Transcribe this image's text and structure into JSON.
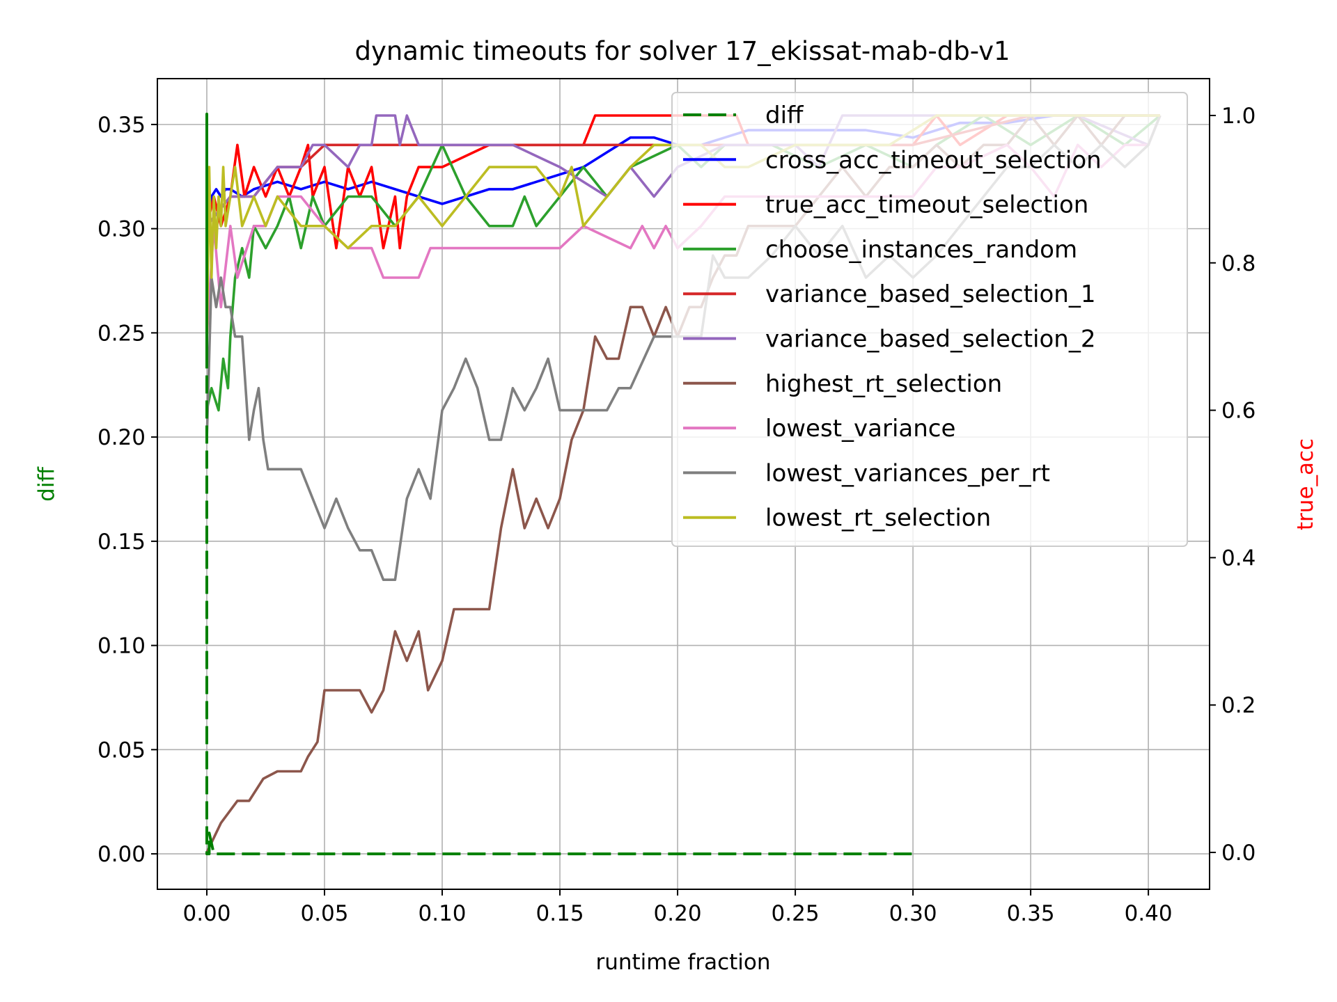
{
  "chart_data": {
    "type": "line",
    "title": "dynamic timeouts for solver 17_ekissat-mab-db-v1",
    "xlabel": "runtime fraction",
    "ylabel_left": "diff",
    "ylabel_right": "true_acc",
    "xlim": [
      -0.021,
      0.426
    ],
    "ylim_left": [
      -0.017,
      0.372
    ],
    "ylim_right": [
      -0.05,
      1.05
    ],
    "x_ticks": [
      0.0,
      0.05,
      0.1,
      0.15,
      0.2,
      0.25,
      0.3,
      0.35,
      0.4
    ],
    "x_tick_labels": [
      "0.00",
      "0.05",
      "0.10",
      "0.15",
      "0.20",
      "0.25",
      "0.30",
      "0.35",
      "0.40"
    ],
    "y_left_ticks": [
      0.0,
      0.05,
      0.1,
      0.15,
      0.2,
      0.25,
      0.3,
      0.35
    ],
    "y_left_tick_labels": [
      "0.00",
      "0.05",
      "0.10",
      "0.15",
      "0.20",
      "0.25",
      "0.30",
      "0.35"
    ],
    "y_right_ticks": [
      0.0,
      0.2,
      0.4,
      0.6,
      0.8,
      1.0
    ],
    "y_right_tick_labels": [
      "0.0",
      "0.2",
      "0.4",
      "0.6",
      "0.8",
      "1.0"
    ],
    "grid": true,
    "legend_placement": "upper-right",
    "colors": {
      "axis_left_label": "#008000",
      "axis_right_label": "#ff0000"
    },
    "series": [
      {
        "name": "diff",
        "axis": "left",
        "color": "#008000",
        "style": "dashed",
        "x": [
          0.0,
          0.0,
          0.0,
          0.001,
          0.001,
          0.003,
          0.01,
          0.05,
          0.1,
          0.15,
          0.2,
          0.203,
          0.226,
          0.235,
          0.292,
          0.3
        ],
        "y": [
          0.24,
          0.355,
          0.0,
          0.0,
          0.01,
          0.0,
          0.0,
          0.0,
          0.0,
          0.0,
          0.0,
          0.0,
          0.0,
          0.0,
          0.0,
          0.0
        ]
      },
      {
        "name": "cross_acc_timeout_selection",
        "axis": "right",
        "color": "#0000ff",
        "style": "solid",
        "x": [
          0.0,
          0.002,
          0.004,
          0.006,
          0.008,
          0.01,
          0.015,
          0.02,
          0.03,
          0.04,
          0.05,
          0.06,
          0.07,
          0.08,
          0.09,
          0.1,
          0.11,
          0.12,
          0.13,
          0.14,
          0.15,
          0.16,
          0.165,
          0.17,
          0.175,
          0.18,
          0.19,
          0.2,
          0.21,
          0.22,
          0.23,
          0.24,
          0.25,
          0.26,
          0.28,
          0.3,
          0.32,
          0.34,
          0.36,
          0.38,
          0.405
        ],
        "y": [
          0.85,
          0.89,
          0.9,
          0.89,
          0.9,
          0.9,
          0.89,
          0.9,
          0.91,
          0.9,
          0.91,
          0.9,
          0.91,
          0.9,
          0.89,
          0.88,
          0.89,
          0.9,
          0.9,
          0.91,
          0.92,
          0.93,
          0.94,
          0.95,
          0.96,
          0.97,
          0.97,
          0.96,
          0.96,
          0.97,
          0.98,
          0.98,
          0.98,
          0.98,
          0.98,
          0.97,
          0.99,
          0.99,
          1.0,
          1.0,
          1.0
        ]
      },
      {
        "name": "true_acc_timeout_selection",
        "axis": "right",
        "color": "#ff0000",
        "style": "solid",
        "x": [
          0.0,
          0.003,
          0.006,
          0.01,
          0.013,
          0.016,
          0.02,
          0.025,
          0.03,
          0.035,
          0.04,
          0.043,
          0.045,
          0.05,
          0.055,
          0.06,
          0.065,
          0.07,
          0.075,
          0.08,
          0.082,
          0.085,
          0.09,
          0.1,
          0.12,
          0.14,
          0.16,
          0.165,
          0.2,
          0.225,
          0.23,
          0.3,
          0.31,
          0.32,
          0.34,
          0.36,
          0.38,
          0.405
        ],
        "y": [
          0.85,
          0.89,
          0.85,
          0.89,
          0.96,
          0.89,
          0.93,
          0.89,
          0.93,
          0.89,
          0.93,
          0.96,
          0.89,
          0.93,
          0.82,
          0.93,
          0.89,
          0.93,
          0.82,
          0.89,
          0.82,
          0.89,
          0.93,
          0.93,
          0.96,
          0.96,
          0.96,
          1.0,
          1.0,
          1.0,
          0.96,
          0.96,
          1.0,
          0.96,
          1.0,
          1.0,
          1.0,
          1.0
        ]
      },
      {
        "name": "choose_instances_random",
        "axis": "right",
        "color": "#2ca02c",
        "style": "solid",
        "x": [
          0.0,
          0.002,
          0.005,
          0.007,
          0.009,
          0.01,
          0.012,
          0.015,
          0.018,
          0.02,
          0.025,
          0.03,
          0.035,
          0.04,
          0.045,
          0.05,
          0.06,
          0.07,
          0.08,
          0.09,
          0.1,
          0.11,
          0.12,
          0.13,
          0.135,
          0.14,
          0.15,
          0.16,
          0.17,
          0.18,
          0.2,
          0.21,
          0.22,
          0.24,
          0.26,
          0.28,
          0.3,
          0.31,
          0.33,
          0.35,
          0.37,
          0.39,
          0.405
        ],
        "y": [
          0.6,
          0.63,
          0.6,
          0.67,
          0.63,
          0.7,
          0.78,
          0.82,
          0.78,
          0.85,
          0.82,
          0.85,
          0.89,
          0.82,
          0.89,
          0.85,
          0.89,
          0.89,
          0.85,
          0.89,
          0.96,
          0.89,
          0.85,
          0.85,
          0.89,
          0.85,
          0.89,
          0.93,
          0.89,
          0.93,
          0.96,
          0.93,
          0.96,
          0.96,
          0.93,
          0.96,
          0.93,
          0.96,
          1.0,
          0.96,
          1.0,
          0.96,
          1.0
        ]
      },
      {
        "name": "variance_based_selection_1",
        "axis": "right",
        "color": "#d62728",
        "style": "solid",
        "x": [
          0.0,
          0.01,
          0.02,
          0.03,
          0.04,
          0.05,
          0.1,
          0.15,
          0.2,
          0.25,
          0.3,
          0.35,
          0.405
        ],
        "y": [
          0.85,
          0.89,
          0.89,
          0.93,
          0.93,
          0.96,
          0.96,
          0.96,
          0.96,
          0.96,
          0.96,
          1.0,
          1.0
        ]
      },
      {
        "name": "variance_based_selection_2",
        "axis": "right",
        "color": "#9467bd",
        "style": "solid",
        "x": [
          0.0,
          0.01,
          0.02,
          0.03,
          0.04,
          0.045,
          0.05,
          0.06,
          0.065,
          0.07,
          0.072,
          0.08,
          0.082,
          0.085,
          0.09,
          0.1,
          0.13,
          0.15,
          0.17,
          0.18,
          0.19,
          0.2,
          0.22,
          0.25,
          0.26,
          0.27,
          0.29,
          0.31,
          0.34,
          0.37,
          0.4,
          0.405
        ],
        "y": [
          0.85,
          0.89,
          0.89,
          0.93,
          0.93,
          0.96,
          0.96,
          0.93,
          0.96,
          0.96,
          1.0,
          1.0,
          0.96,
          1.0,
          0.96,
          0.96,
          0.96,
          0.93,
          0.89,
          0.93,
          0.89,
          0.93,
          0.96,
          0.96,
          0.93,
          1.0,
          1.0,
          1.0,
          1.0,
          1.0,
          0.96,
          1.0
        ]
      },
      {
        "name": "highest_rt_selection",
        "axis": "right",
        "color": "#8c564b",
        "style": "solid",
        "x": [
          0.0,
          0.006,
          0.013,
          0.018,
          0.024,
          0.03,
          0.036,
          0.04,
          0.043,
          0.047,
          0.05,
          0.06,
          0.065,
          0.07,
          0.075,
          0.08,
          0.085,
          0.09,
          0.094,
          0.1,
          0.105,
          0.11,
          0.12,
          0.125,
          0.13,
          0.135,
          0.14,
          0.145,
          0.15,
          0.155,
          0.16,
          0.165,
          0.17,
          0.175,
          0.18,
          0.185,
          0.19,
          0.195,
          0.2,
          0.205,
          0.21,
          0.215,
          0.22,
          0.225,
          0.23,
          0.24,
          0.25,
          0.26,
          0.27,
          0.28,
          0.29,
          0.3,
          0.31,
          0.32,
          0.33,
          0.34,
          0.35,
          0.36,
          0.37,
          0.38,
          0.39,
          0.405
        ],
        "y": [
          0.0,
          0.04,
          0.07,
          0.07,
          0.1,
          0.11,
          0.11,
          0.11,
          0.13,
          0.15,
          0.22,
          0.22,
          0.22,
          0.19,
          0.22,
          0.3,
          0.26,
          0.3,
          0.22,
          0.26,
          0.33,
          0.33,
          0.33,
          0.44,
          0.52,
          0.44,
          0.48,
          0.44,
          0.48,
          0.56,
          0.6,
          0.7,
          0.67,
          0.67,
          0.74,
          0.74,
          0.7,
          0.74,
          0.7,
          0.74,
          0.74,
          0.78,
          0.81,
          0.81,
          0.85,
          0.85,
          0.85,
          0.89,
          0.93,
          0.89,
          0.93,
          0.93,
          0.96,
          0.93,
          0.96,
          0.96,
          1.0,
          0.96,
          1.0,
          0.96,
          1.0,
          1.0
        ]
      },
      {
        "name": "lowest_variance",
        "axis": "right",
        "color": "#e377c2",
        "style": "solid",
        "x": [
          0.0,
          0.003,
          0.006,
          0.01,
          0.013,
          0.02,
          0.025,
          0.03,
          0.04,
          0.05,
          0.06,
          0.065,
          0.07,
          0.075,
          0.08,
          0.09,
          0.095,
          0.1,
          0.13,
          0.14,
          0.15,
          0.16,
          0.18,
          0.185,
          0.19,
          0.195,
          0.2,
          0.21,
          0.22,
          0.23,
          0.25,
          0.3,
          0.31,
          0.32,
          0.34,
          0.35,
          0.36,
          0.37,
          0.38,
          0.39,
          0.4,
          0.405
        ],
        "y": [
          0.7,
          0.85,
          0.74,
          0.85,
          0.78,
          0.85,
          0.85,
          0.89,
          0.89,
          0.85,
          0.82,
          0.82,
          0.82,
          0.78,
          0.78,
          0.78,
          0.82,
          0.82,
          0.82,
          0.82,
          0.82,
          0.85,
          0.82,
          0.85,
          0.82,
          0.85,
          0.82,
          0.85,
          0.89,
          0.89,
          0.89,
          0.89,
          0.93,
          0.93,
          0.96,
          0.93,
          0.89,
          0.96,
          0.93,
          0.96,
          0.96,
          1.0
        ]
      },
      {
        "name": "lowest_variances_per_rt",
        "axis": "right",
        "color": "#7f7f7f",
        "style": "solid",
        "x": [
          0.0,
          0.002,
          0.004,
          0.006,
          0.008,
          0.01,
          0.012,
          0.015,
          0.018,
          0.02,
          0.022,
          0.024,
          0.026,
          0.03,
          0.035,
          0.04,
          0.045,
          0.05,
          0.055,
          0.06,
          0.065,
          0.07,
          0.075,
          0.08,
          0.085,
          0.09,
          0.095,
          0.1,
          0.105,
          0.11,
          0.115,
          0.12,
          0.125,
          0.13,
          0.135,
          0.14,
          0.145,
          0.15,
          0.155,
          0.16,
          0.17,
          0.175,
          0.18,
          0.19,
          0.2,
          0.21,
          0.215,
          0.22,
          0.23,
          0.24,
          0.25,
          0.26,
          0.27,
          0.28,
          0.29,
          0.3,
          0.31,
          0.32,
          0.33,
          0.34,
          0.35,
          0.36,
          0.37,
          0.38,
          0.39,
          0.4,
          0.405
        ],
        "y": [
          0.56,
          0.78,
          0.74,
          0.78,
          0.74,
          0.74,
          0.7,
          0.7,
          0.56,
          0.6,
          0.63,
          0.56,
          0.52,
          0.52,
          0.52,
          0.52,
          0.48,
          0.44,
          0.48,
          0.44,
          0.41,
          0.41,
          0.37,
          0.37,
          0.48,
          0.52,
          0.48,
          0.6,
          0.63,
          0.67,
          0.63,
          0.56,
          0.56,
          0.63,
          0.6,
          0.63,
          0.67,
          0.6,
          0.6,
          0.6,
          0.6,
          0.63,
          0.63,
          0.7,
          0.7,
          0.7,
          0.81,
          0.78,
          0.78,
          0.81,
          0.85,
          0.81,
          0.85,
          0.78,
          0.81,
          0.78,
          0.81,
          0.85,
          0.89,
          0.93,
          0.93,
          0.96,
          0.93,
          0.96,
          0.93,
          0.96,
          1.0
        ]
      },
      {
        "name": "lowest_rt_selection",
        "axis": "right",
        "color": "#bcbd22",
        "style": "solid",
        "x": [
          0.0,
          0.001,
          0.002,
          0.003,
          0.004,
          0.005,
          0.006,
          0.007,
          0.008,
          0.01,
          0.012,
          0.015,
          0.02,
          0.025,
          0.03,
          0.04,
          0.05,
          0.06,
          0.07,
          0.08,
          0.09,
          0.1,
          0.12,
          0.14,
          0.15,
          0.155,
          0.16,
          0.17,
          0.18,
          0.19,
          0.2,
          0.21,
          0.22,
          0.23,
          0.25,
          0.27,
          0.29,
          0.31,
          0.33,
          0.35,
          0.37,
          0.39,
          0.405
        ],
        "y": [
          0.68,
          0.93,
          0.78,
          0.89,
          0.82,
          0.89,
          0.85,
          0.93,
          0.85,
          0.89,
          0.93,
          0.85,
          0.89,
          0.85,
          0.89,
          0.85,
          0.85,
          0.82,
          0.85,
          0.85,
          0.89,
          0.85,
          0.93,
          0.93,
          0.89,
          0.93,
          0.85,
          0.89,
          0.93,
          0.96,
          0.96,
          0.96,
          0.93,
          0.93,
          0.96,
          0.96,
          0.96,
          1.0,
          1.0,
          1.0,
          1.0,
          1.0,
          1.0
        ]
      }
    ]
  }
}
